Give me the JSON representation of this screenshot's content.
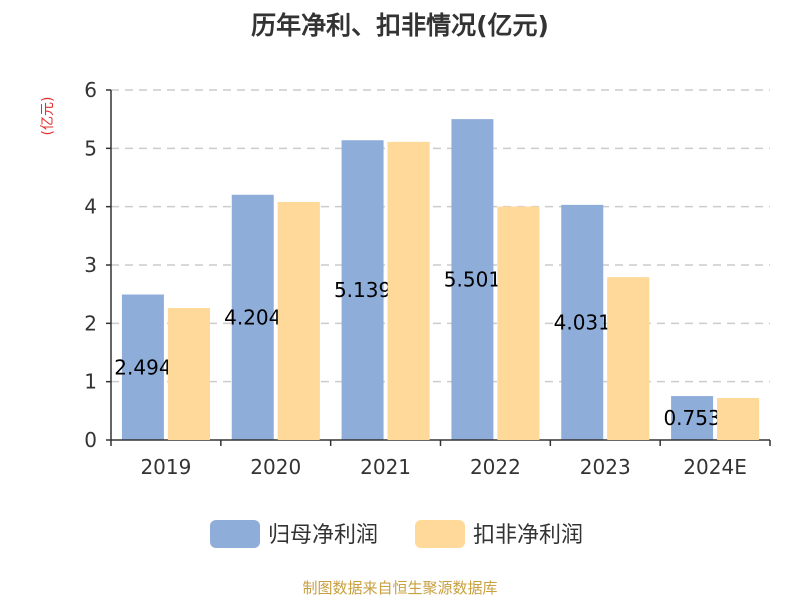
{
  "chart_data": {
    "type": "bar",
    "title": "历年净利、扣非情况(亿元)",
    "ylabel": "(亿元)",
    "categories": [
      "2019",
      "2020",
      "2021",
      "2022",
      "2023",
      "2024E"
    ],
    "ylim": [
      0,
      6
    ],
    "yticks": [
      0,
      1,
      2,
      3,
      4,
      5,
      6
    ],
    "grid": true,
    "legend_position": "bottom",
    "series": [
      {
        "name": "归母净利润",
        "color": "#8eadd9",
        "values": [
          2.494,
          4.204,
          5.139,
          5.501,
          4.031,
          0.753
        ],
        "labels": [
          "2.494",
          "4.204",
          "5.139",
          "5.501",
          "4.031",
          "0.753"
        ]
      },
      {
        "name": "扣非净利润",
        "color": "#ffd99a",
        "values": [
          2.26,
          4.08,
          5.11,
          4.0,
          2.79,
          0.72
        ]
      }
    ]
  },
  "colors": {
    "unit_label": "#e03030",
    "source": "#c8a040"
  },
  "footer": {
    "source": "制图数据来自恒生聚源数据库"
  }
}
